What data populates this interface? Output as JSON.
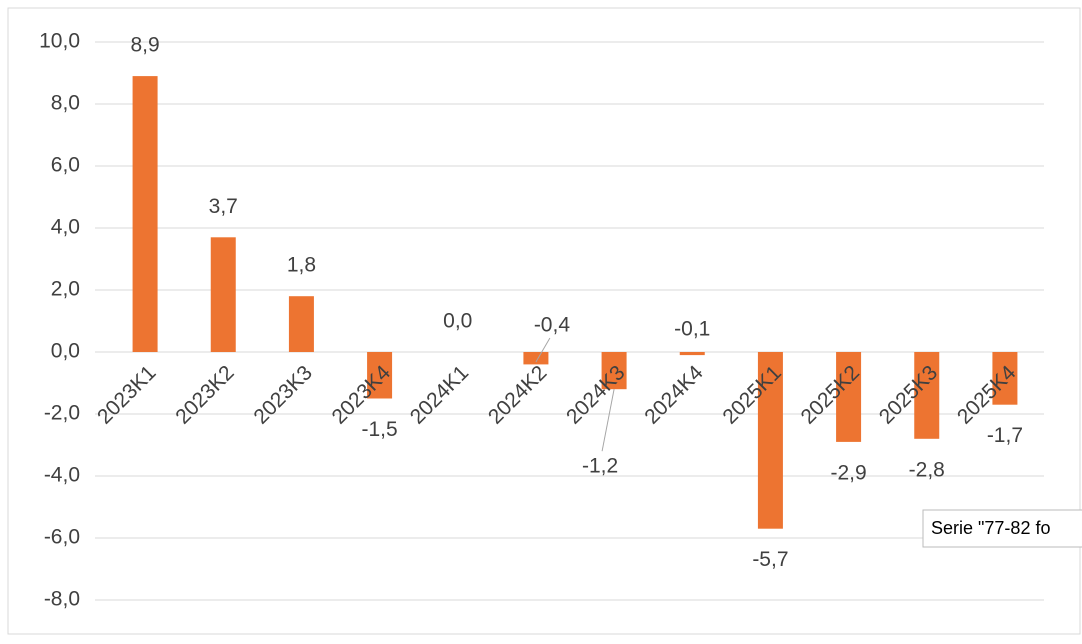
{
  "chart_data": {
    "type": "bar",
    "categories": [
      "2023K1",
      "2023K2",
      "2023K3",
      "2023K4",
      "2024K1",
      "2024K2",
      "2024K3",
      "2024K4",
      "2025K1",
      "2025K2",
      "2025K3",
      "2025K4"
    ],
    "values": [
      8.9,
      3.7,
      1.8,
      -1.5,
      0.0,
      -0.4,
      -1.2,
      -0.1,
      -5.7,
      -2.9,
      -2.8,
      -1.7
    ],
    "value_labels": [
      "8,9",
      "3,7",
      "1,8",
      "-1,5",
      "0,0",
      "-0,4",
      "-1,2",
      "-0,1",
      "-5,7",
      "-2,9",
      "-2,8",
      "-1,7"
    ],
    "color": "#ed7431",
    "ylim": [
      -8,
      10
    ],
    "yticks": [
      {
        "value": 10,
        "label": "10,0"
      },
      {
        "value": 8,
        "label": "8,0"
      },
      {
        "value": 6,
        "label": "6,0"
      },
      {
        "value": 4,
        "label": "4,0"
      },
      {
        "value": 2,
        "label": "2,0"
      },
      {
        "value": 0,
        "label": "0,0"
      },
      {
        "value": -2,
        "label": "-2,0"
      },
      {
        "value": -4,
        "label": "-4,0"
      },
      {
        "value": -6,
        "label": "-6,0"
      },
      {
        "value": -8,
        "label": "-8,0"
      }
    ],
    "grid": true,
    "tooltip": "Serie \"77-82 fo"
  }
}
